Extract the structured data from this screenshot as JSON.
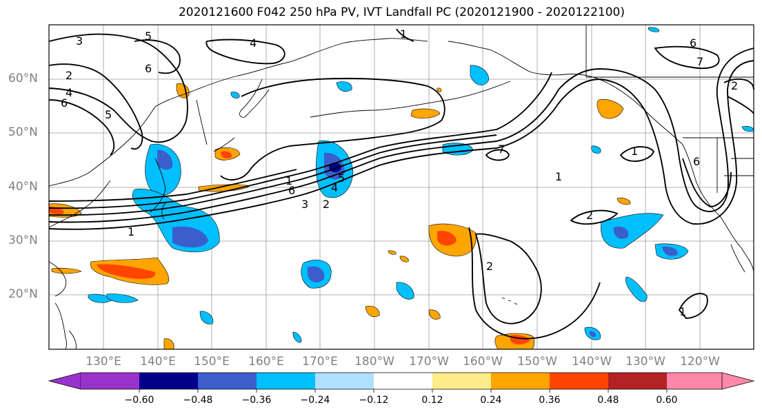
{
  "title": "2020121600 F042 250 hPa PV, IVT Landfall PC (2020121900 - 2020122100)",
  "map": {
    "lat_labels": [
      "60°N",
      "50°N",
      "40°N",
      "30°N",
      "20°N"
    ],
    "lon_labels": [
      "130°E",
      "140°E",
      "150°E",
      "160°E",
      "170°E",
      "180°W",
      "170°W",
      "160°W",
      "150°W",
      "140°W",
      "130°W",
      "120°W"
    ],
    "contour_labels": [
      "1",
      "2",
      "3",
      "4",
      "5",
      "6",
      "7"
    ]
  },
  "colorbar": {
    "ticks": [
      "−0.60",
      "−0.48",
      "−0.36",
      "−0.24",
      "−0.12",
      "0.12",
      "0.24",
      "0.36",
      "0.48",
      "0.60"
    ],
    "colors": [
      "#9932cc",
      "#00008b",
      "#3a5fcd",
      "#00bfff",
      "#b0e0ff",
      "#ffffff",
      "#ffec8b",
      "#ffa500",
      "#ff4500",
      "#b22222",
      "#ff88aa"
    ]
  }
}
